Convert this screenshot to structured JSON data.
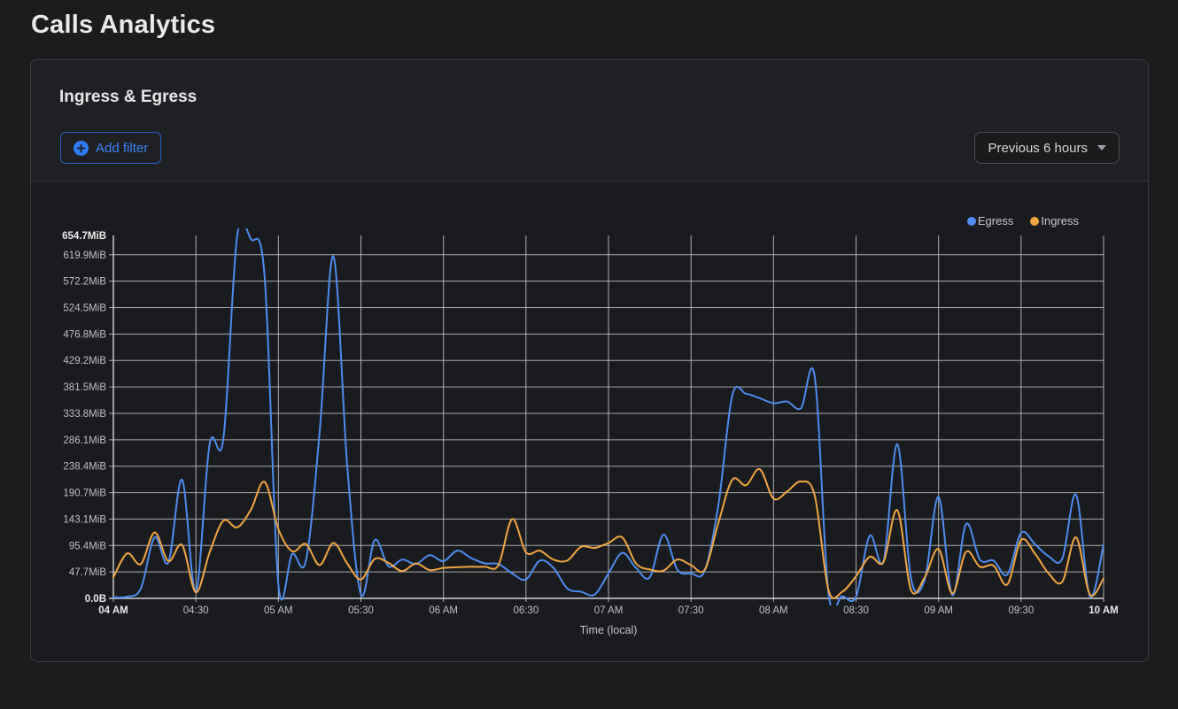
{
  "page_title": "Calls Analytics",
  "panel": {
    "title": "Ingress & Egress",
    "add_filter_label": "Add filter",
    "time_range_label": "Previous 6 hours"
  },
  "chart_data": {
    "type": "line",
    "title": "Ingress & Egress",
    "xlabel": "Time (local)",
    "ylabel": "",
    "grid": true,
    "legend_position": "top-right",
    "ylim": [
      0,
      654.7
    ],
    "y_unit": "MiB",
    "y_ticks": [
      {
        "label": "0.0B",
        "value": 0,
        "bold": true
      },
      {
        "label": "47.7MiB",
        "value": 47.7
      },
      {
        "label": "95.4MiB",
        "value": 95.4
      },
      {
        "label": "143.1MiB",
        "value": 143.1
      },
      {
        "label": "190.7MiB",
        "value": 190.7
      },
      {
        "label": "238.4MiB",
        "value": 238.4
      },
      {
        "label": "286.1MiB",
        "value": 286.1
      },
      {
        "label": "333.8MiB",
        "value": 333.8
      },
      {
        "label": "381.5MiB",
        "value": 381.5
      },
      {
        "label": "429.2MiB",
        "value": 429.2
      },
      {
        "label": "476.8MiB",
        "value": 476.8
      },
      {
        "label": "524.5MiB",
        "value": 524.5
      },
      {
        "label": "572.2MiB",
        "value": 572.2
      },
      {
        "label": "619.9MiB",
        "value": 619.9
      },
      {
        "label": "654.7MiB",
        "value": 654.7,
        "bold": true,
        "grid": false
      }
    ],
    "x_ticks": [
      {
        "label": "04 AM",
        "index": 0,
        "bold": true
      },
      {
        "label": "04:30",
        "index": 6
      },
      {
        "label": "05 AM",
        "index": 12
      },
      {
        "label": "05:30",
        "index": 18
      },
      {
        "label": "06 AM",
        "index": 24
      },
      {
        "label": "06:30",
        "index": 30
      },
      {
        "label": "07 AM",
        "index": 36
      },
      {
        "label": "07:30",
        "index": 42
      },
      {
        "label": "08 AM",
        "index": 48
      },
      {
        "label": "08:30",
        "index": 54
      },
      {
        "label": "09 AM",
        "index": 60
      },
      {
        "label": "09:30",
        "index": 66
      },
      {
        "label": "10 AM",
        "index": 72,
        "bold": true
      }
    ],
    "x": [
      "04:00",
      "04:05",
      "04:10",
      "04:15",
      "04:20",
      "04:25",
      "04:30",
      "04:35",
      "04:40",
      "04:45",
      "04:50",
      "04:55",
      "05:00",
      "05:05",
      "05:10",
      "05:15",
      "05:20",
      "05:25",
      "05:30",
      "05:35",
      "05:40",
      "05:45",
      "05:50",
      "05:55",
      "06:00",
      "06:05",
      "06:10",
      "06:15",
      "06:20",
      "06:25",
      "06:30",
      "06:35",
      "06:40",
      "06:45",
      "06:50",
      "06:55",
      "07:00",
      "07:05",
      "07:10",
      "07:15",
      "07:20",
      "07:25",
      "07:30",
      "07:35",
      "07:40",
      "07:45",
      "07:50",
      "07:55",
      "08:00",
      "08:05",
      "08:10",
      "08:15",
      "08:20",
      "08:25",
      "08:30",
      "08:35",
      "08:40",
      "08:45",
      "08:50",
      "08:55",
      "09:00",
      "09:05",
      "09:10",
      "09:15",
      "09:20",
      "09:25",
      "09:30",
      "09:35",
      "09:40",
      "09:45",
      "09:50",
      "09:55",
      "10:00"
    ],
    "series": [
      {
        "name": "Egress",
        "color": "#4e8cf0",
        "values": [
          2,
          3,
          18,
          110,
          65,
          214,
          12,
          278,
          288,
          654,
          648,
          580,
          25,
          80,
          68,
          300,
          617,
          240,
          7,
          105,
          58,
          70,
          62,
          78,
          67,
          86,
          73,
          63,
          62,
          45,
          34,
          68,
          55,
          18,
          12,
          7,
          45,
          82,
          55,
          38,
          115,
          52,
          45,
          50,
          170,
          366,
          369,
          361,
          352,
          355,
          343,
          399,
          9,
          4,
          3,
          113,
          67,
          278,
          36,
          34,
          183,
          6,
          134,
          70,
          68,
          43,
          118,
          98,
          76,
          72,
          187,
          4,
          97
        ]
      },
      {
        "name": "Ingress",
        "color": "#f0a643",
        "values": [
          38,
          81,
          62,
          119,
          67,
          96,
          11,
          83,
          140,
          128,
          160,
          210,
          125,
          85,
          98,
          60,
          100,
          63,
          34,
          71,
          64,
          49,
          63,
          51,
          55,
          56,
          57,
          57,
          60,
          143,
          83,
          86,
          70,
          68,
          93,
          91,
          100,
          110,
          63,
          52,
          50,
          70,
          60,
          52,
          137,
          214,
          204,
          233,
          180,
          193,
          211,
          185,
          15,
          12,
          40,
          75,
          66,
          159,
          15,
          38,
          89,
          9,
          84,
          57,
          59,
          25,
          105,
          81,
          45,
          30,
          110,
          7,
          36
        ]
      }
    ]
  }
}
